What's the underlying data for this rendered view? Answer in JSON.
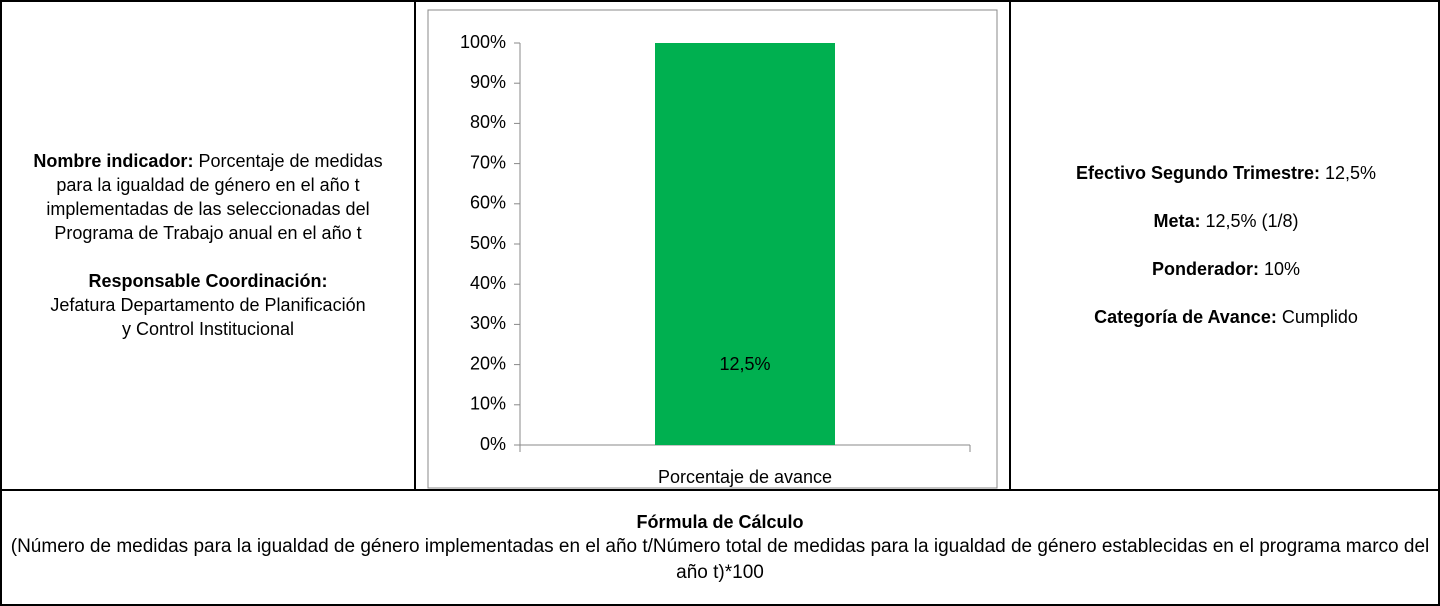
{
  "left": {
    "indicator_label": "Nombre indicador:",
    "indicator_text": "Porcentaje de medidas para la igualdad de género en el año t implementadas de las seleccionadas del Programa de Trabajo anual en el año t",
    "responsible_label": "Responsable Coordinación:",
    "responsible_text": "Jefatura Departamento de Planificación y Control Institucional"
  },
  "chart_data": {
    "type": "bar",
    "categories": [
      "Porcentaje de avance"
    ],
    "values": [
      100
    ],
    "annotation": "12,5%",
    "color": "#00b050",
    "ylim": [
      0,
      100
    ],
    "yticks": [
      {
        "value": 0,
        "label": "0%"
      },
      {
        "value": 10,
        "label": "10%"
      },
      {
        "value": 20,
        "label": "20%"
      },
      {
        "value": 30,
        "label": "30%"
      },
      {
        "value": 40,
        "label": "40%"
      },
      {
        "value": 50,
        "label": "50%"
      },
      {
        "value": 60,
        "label": "60%"
      },
      {
        "value": 70,
        "label": "70%"
      },
      {
        "value": 80,
        "label": "80%"
      },
      {
        "value": 90,
        "label": "90%"
      },
      {
        "value": 100,
        "label": "100%"
      }
    ]
  },
  "right": {
    "items": [
      {
        "label": "Efectivo Segundo Trimestre:",
        "value": "12,5%"
      },
      {
        "label": "Meta:",
        "value": "12,5% (1/8)"
      },
      {
        "label": "Ponderador:",
        "value": "10%"
      },
      {
        "label": "Categoría de Avance:",
        "value": "Cumplido"
      }
    ]
  },
  "formula": {
    "title": "Fórmula de Cálculo",
    "text": "(Número de medidas para la igualdad de género implementadas en el año t/Número total de medidas para la igualdad de género establecidas en el programa marco del año t)*100"
  }
}
